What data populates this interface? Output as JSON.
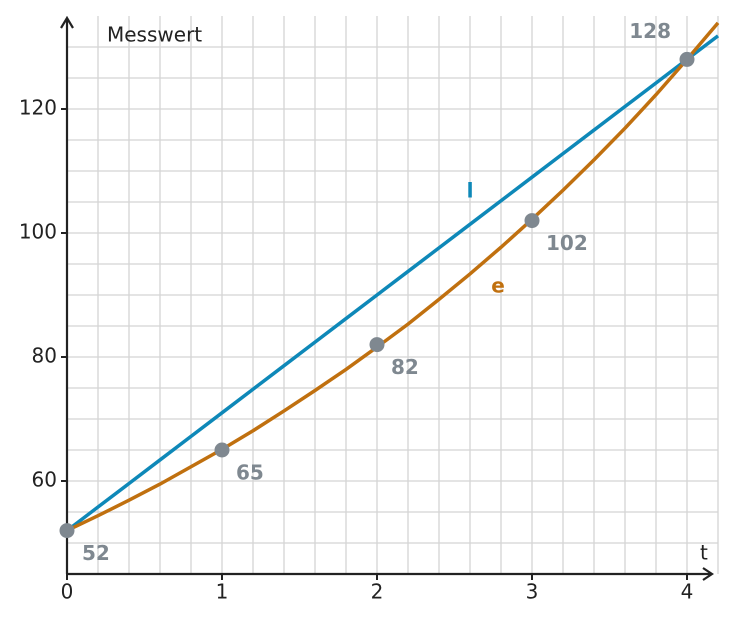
{
  "chart_data": {
    "type": "line",
    "y_label": "Messwert",
    "x_label": "t",
    "x": [
      0,
      0.2,
      0.4,
      0.6,
      0.8,
      1,
      1.2,
      1.4,
      1.6,
      1.8,
      2,
      2.2,
      2.4,
      2.6,
      2.8,
      3,
      3.2,
      3.4,
      3.6,
      3.8,
      4,
      4.2
    ],
    "series": [
      {
        "name": "l",
        "color": "#0e88b8",
        "values": [
          52,
          55.8,
          59.6,
          63.4,
          67.2,
          71,
          74.8,
          78.6,
          82.4,
          86.2,
          90,
          93.8,
          97.6,
          101.4,
          105.2,
          109,
          112.8,
          116.6,
          120.4,
          124.2,
          128,
          131.8
        ]
      },
      {
        "name": "e",
        "color": "#c0700f",
        "values": [
          52,
          54.4,
          56.9,
          59.5,
          62.3,
          65.1,
          68.1,
          71.3,
          74.6,
          78,
          81.6,
          85.3,
          89.3,
          93.4,
          97.7,
          102.2,
          106.9,
          111.8,
          116.9,
          122.3,
          128,
          133.9
        ]
      }
    ],
    "markers": {
      "color": "#7f8890",
      "x": [
        0,
        1,
        2,
        3,
        4
      ],
      "values": [
        52,
        65,
        82,
        102,
        128
      ]
    },
    "xlim": [
      0,
      4.2
    ],
    "ylim": [
      45,
      135
    ],
    "xticks": [
      0,
      1,
      2,
      3,
      4
    ],
    "yticks": [
      60,
      80,
      100,
      120
    ],
    "ygrid": [
      50,
      55,
      60,
      65,
      70,
      75,
      80,
      85,
      90,
      95,
      100,
      105,
      110,
      115,
      120,
      125,
      130
    ],
    "grid": true
  }
}
